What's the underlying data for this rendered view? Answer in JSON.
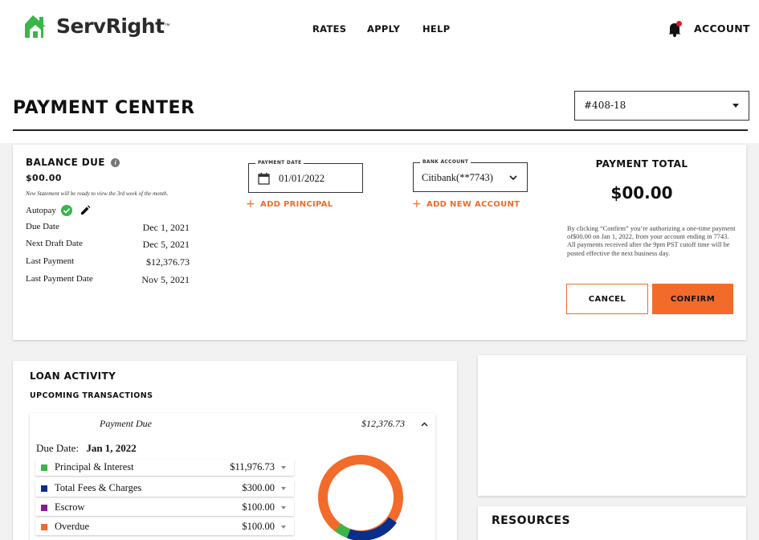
{
  "brand": {
    "name": "ServRight",
    "tm": "™",
    "primary_color": "#f26b2a",
    "logo_green": "#3bb54a"
  },
  "nav": {
    "rates": "RATES",
    "apply": "APPLY",
    "help": "HELP",
    "account": "ACCOUNT"
  },
  "page": {
    "title": "PAYMENT CENTER",
    "loan_selected": "#408-18"
  },
  "balance": {
    "heading": "BALANCE DUE",
    "amount": "$00.00",
    "note": "New Statement will be ready to view the 3rd week of the month.",
    "autopay_label": "Autopay",
    "rows": [
      {
        "label": "Due Date",
        "value": "Dec 1, 2021"
      },
      {
        "label": "Next Draft Date",
        "value": "Dec 5, 2021"
      },
      {
        "label": "Last Payment",
        "value": "$12,376.73"
      },
      {
        "label": "Last Payment Date",
        "value": "Nov 5, 2021"
      }
    ]
  },
  "payment_form": {
    "date_label": "PAYMENT DATE",
    "date_value": "01/01/2022",
    "add_principal": "ADD PRINCIPAL",
    "bank_label": "BANK ACCOUNT",
    "bank_value": "Citibank(**7743)",
    "add_account": "ADD NEW ACCOUNT"
  },
  "payment_total": {
    "heading": "PAYMENT TOTAL",
    "amount": "$00.00",
    "disclaimer": "By clicking “Confirm” you’re authorizing a one-time payment of$00.00 on Jan 1, 2022, from your account ending in 7743. All payments received after the 9pm PST cutoff time will be posted effective the next business day.",
    "cancel": "CANCEL",
    "confirm": "CONFIRM"
  },
  "loan_activity": {
    "heading": "LOAN ACTIVITY",
    "subheading": "UPCOMING TRANSACTIONS",
    "payment_due_label": "Payment Due",
    "payment_due_amount": "$12,376.73",
    "due_date_label": "Due Date:",
    "due_date_value": "Jan 1, 2022",
    "items": [
      {
        "label": "Principal & Interest",
        "amount": "$11,976.73",
        "color": "#3bb54a"
      },
      {
        "label": "Total Fees & Charges",
        "amount": "$300.00",
        "color": "#0a2e8c"
      },
      {
        "label": "Escrow",
        "amount": "$100.00",
        "color": "#8a1a9b"
      },
      {
        "label": "Overdue",
        "amount": "$100.00",
        "color": "#f26b2a"
      }
    ]
  },
  "resources": {
    "heading": "RESOURCES"
  }
}
